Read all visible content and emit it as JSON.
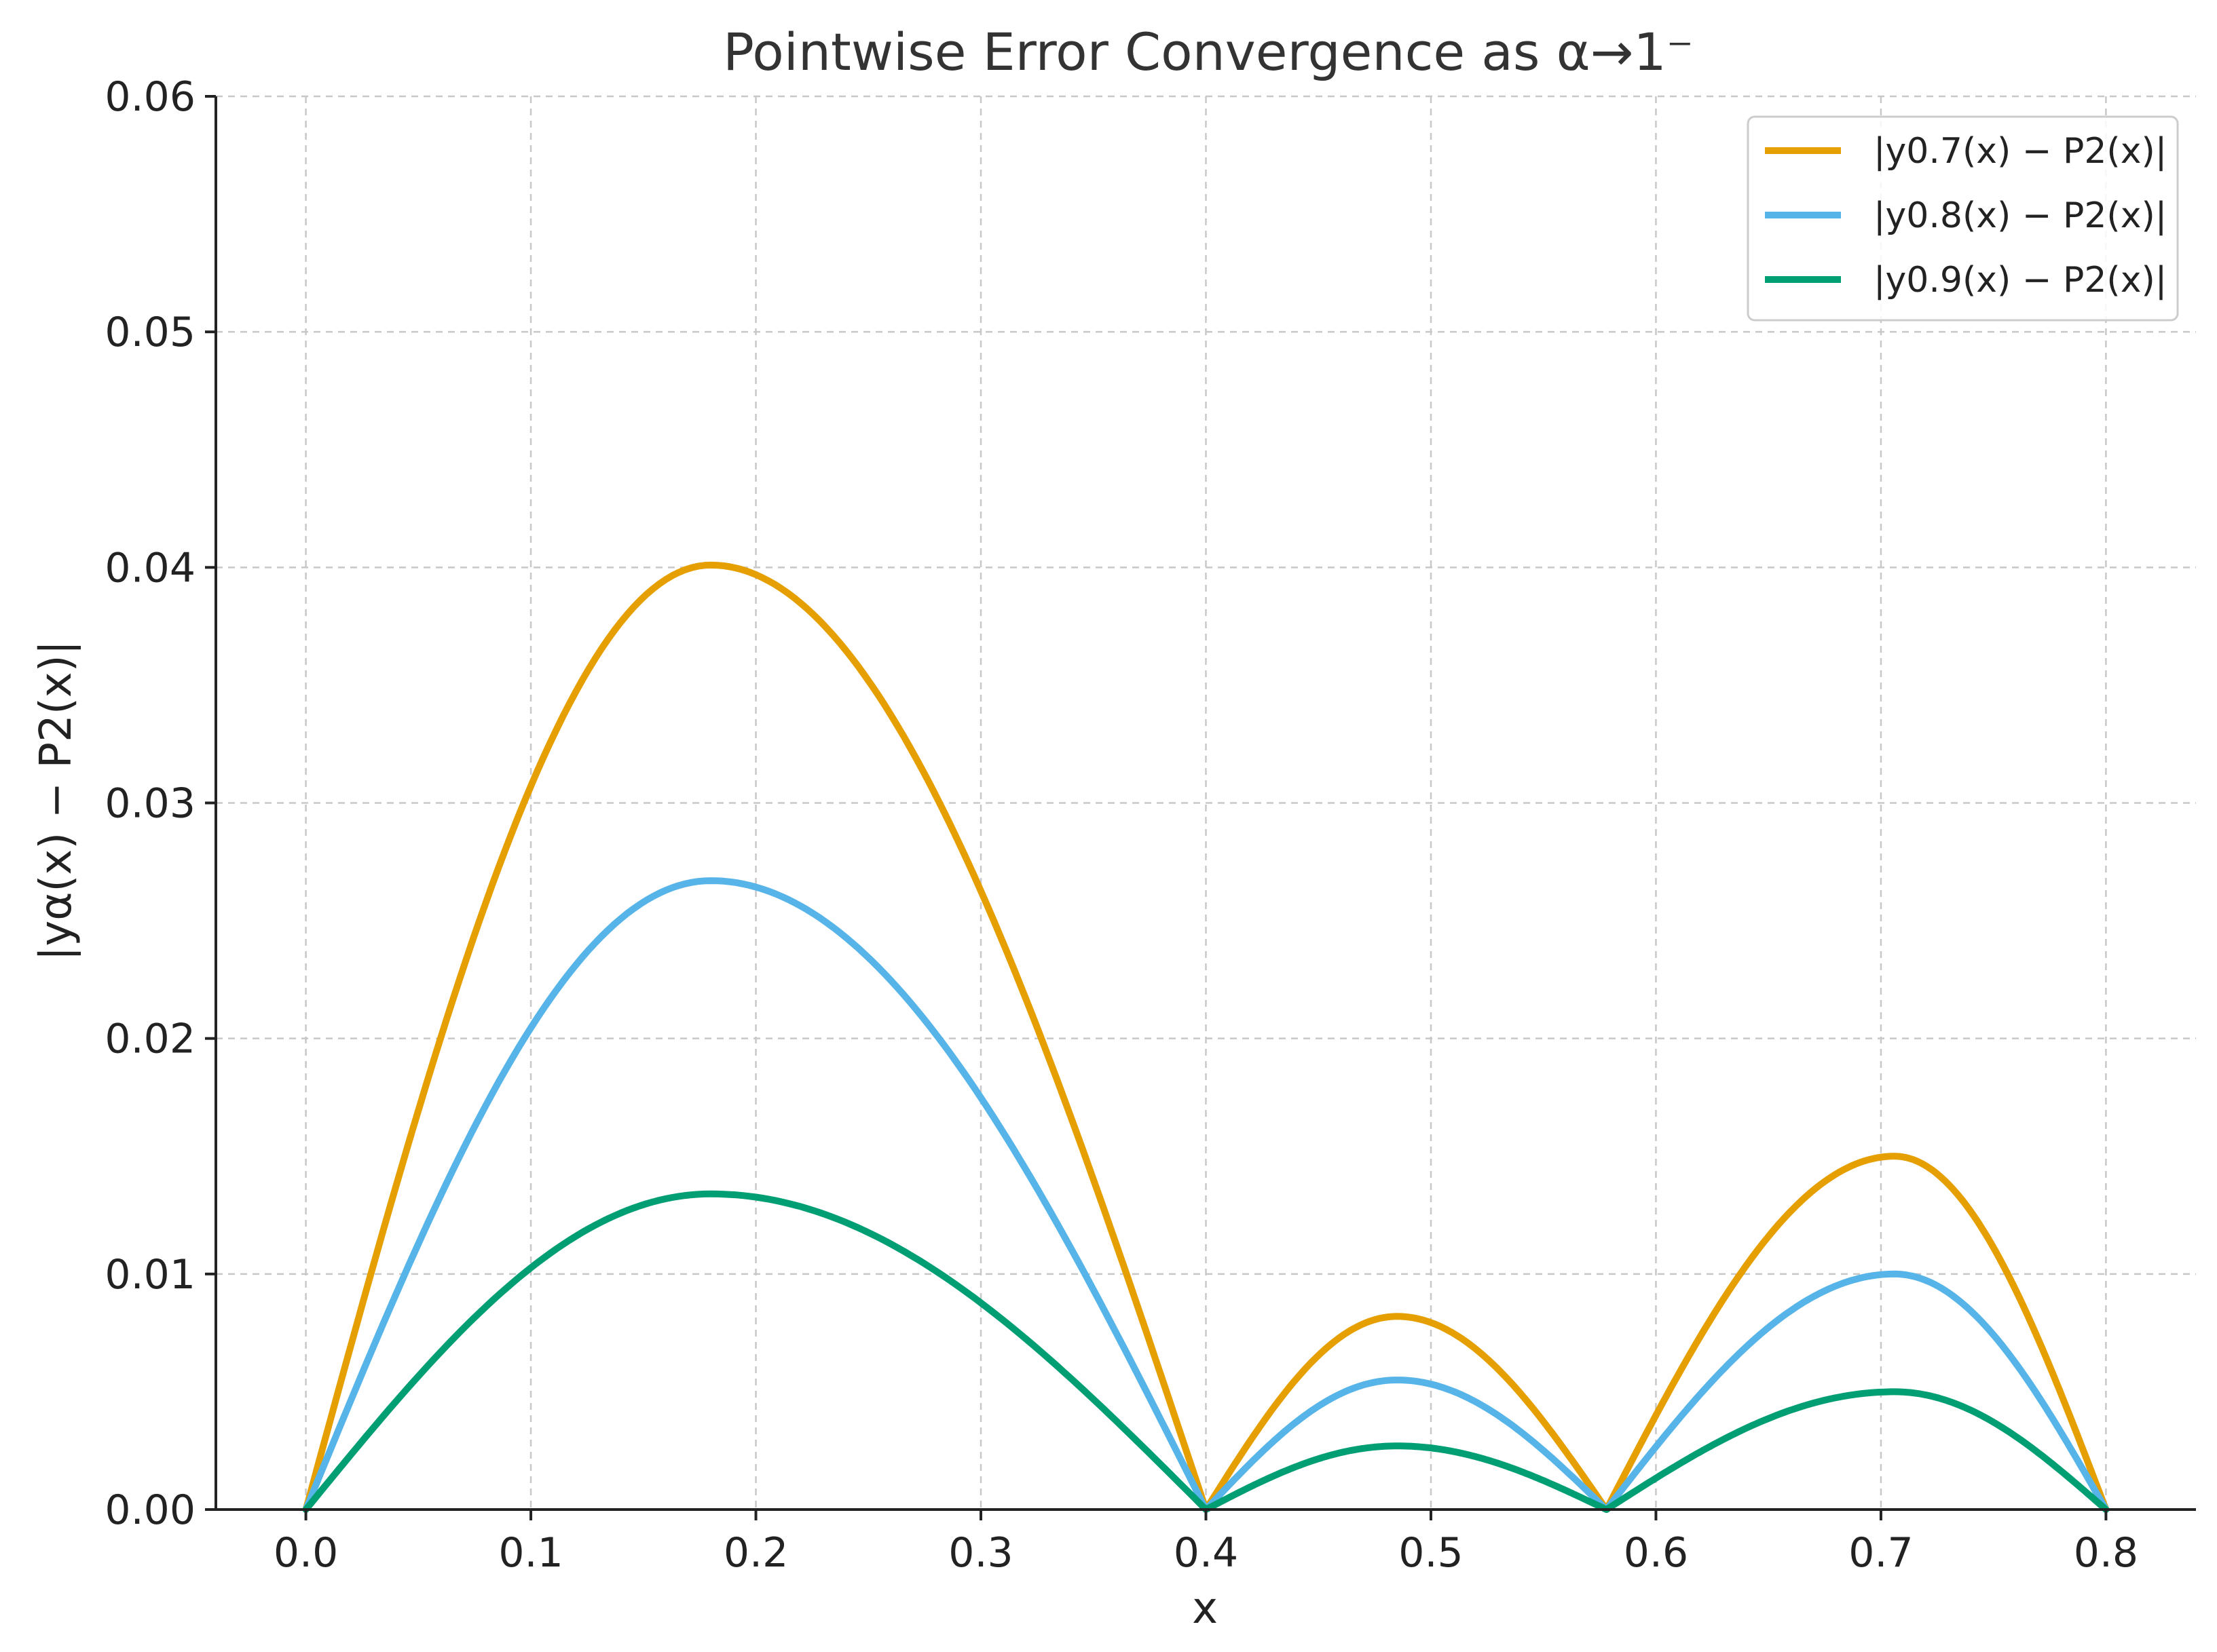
{
  "chart_data": {
    "type": "line",
    "title": "Pointwise Error Convergence as α→1⁻",
    "xlabel": "x",
    "ylabel": "|yα(x) − P2(x)|",
    "xlim": [
      -0.04,
      0.84
    ],
    "ylim": [
      0,
      0.06
    ],
    "xticks": [
      "0.0",
      "0.1",
      "0.2",
      "0.3",
      "0.4",
      "0.5",
      "0.6",
      "0.7",
      "0.8"
    ],
    "yticks": [
      "0.00",
      "0.01",
      "0.02",
      "0.03",
      "0.04",
      "0.05",
      "0.06"
    ],
    "grid": true,
    "legend_position": "top-right",
    "zeros": [
      0.0,
      0.4,
      0.578,
      0.8
    ],
    "series": [
      {
        "name": "|y0.7(x) − P2(x)|",
        "color": "#E69F00",
        "peaks": [
          {
            "x": 0.18,
            "y": 0.0401
          },
          {
            "x": 0.485,
            "y": 0.0082
          },
          {
            "x": 0.706,
            "y": 0.015
          }
        ]
      },
      {
        "name": "|y0.8(x) − P2(x)|",
        "color": "#56B4E9",
        "peaks": [
          {
            "x": 0.18,
            "y": 0.0267
          },
          {
            "x": 0.485,
            "y": 0.0055
          },
          {
            "x": 0.706,
            "y": 0.01
          }
        ]
      },
      {
        "name": "|y0.9(x) − P2(x)|",
        "color": "#009E73",
        "peaks": [
          {
            "x": 0.18,
            "y": 0.0134
          },
          {
            "x": 0.485,
            "y": 0.0027
          },
          {
            "x": 0.706,
            "y": 0.005
          }
        ]
      }
    ]
  }
}
